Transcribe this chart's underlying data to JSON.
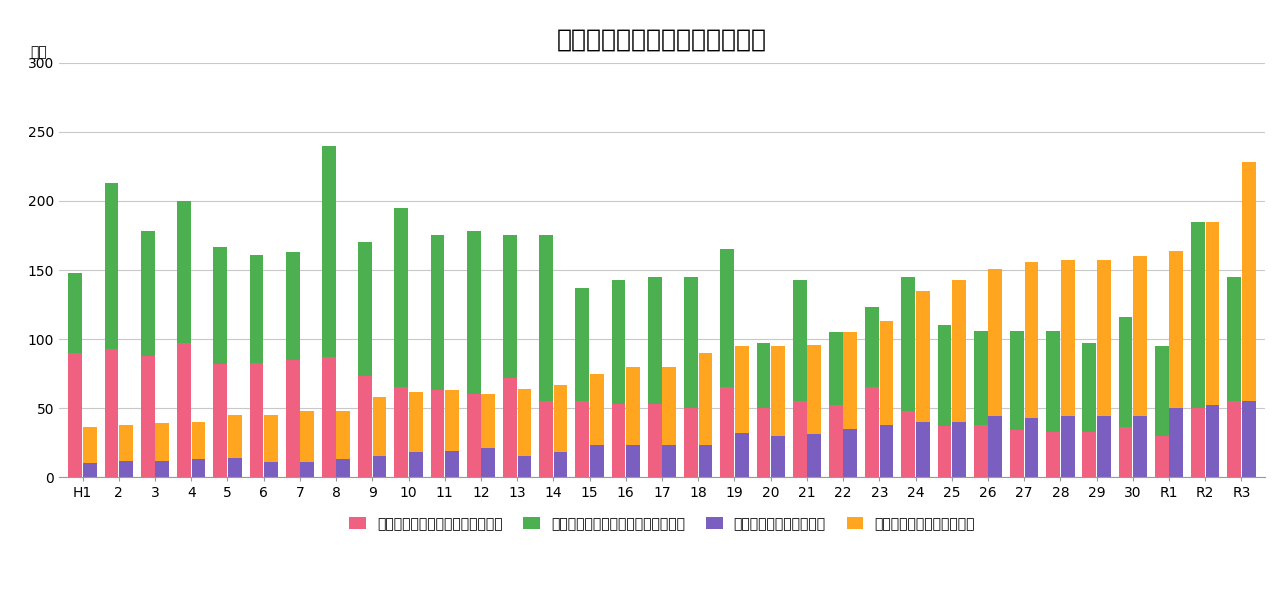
{
  "title": "扶助費と普通建設事業費の推移",
  "ylabel": "億円",
  "ylim": [
    0,
    300
  ],
  "yticks": [
    0,
    50,
    100,
    150,
    200,
    250,
    300
  ],
  "categories": [
    "H1",
    "2",
    "3",
    "4",
    "5",
    "6",
    "7",
    "8",
    "9",
    "10",
    "11",
    "12",
    "13",
    "14",
    "15",
    "16",
    "17",
    "18",
    "19",
    "20",
    "21",
    "22",
    "23",
    "24",
    "25",
    "26",
    "27",
    "28",
    "29",
    "30",
    "R1",
    "R2",
    "R3"
  ],
  "series": {
    "pink": {
      "label": "普通建設事業費のうちの一般財源",
      "color": "#F06080",
      "values": [
        90,
        93,
        88,
        97,
        82,
        83,
        85,
        87,
        73,
        65,
        63,
        60,
        72,
        55,
        55,
        53,
        53,
        50,
        65,
        50,
        55,
        52,
        65,
        48,
        37,
        38,
        34,
        33,
        33,
        36,
        30,
        50,
        55
      ]
    },
    "green": {
      "label": "普通建設事業費（一般財源を除く）",
      "color": "#4CAF50",
      "values": [
        58,
        120,
        90,
        103,
        85,
        78,
        78,
        153,
        97,
        130,
        112,
        118,
        103,
        120,
        82,
        90,
        92,
        95,
        100,
        47,
        88,
        53,
        58,
        97,
        73,
        68,
        72,
        73,
        64,
        80,
        65,
        135,
        90
      ]
    },
    "purple": {
      "label": "扶助費のうちの一般財源",
      "color": "#7B5FC0",
      "values": [
        10,
        12,
        12,
        13,
        14,
        11,
        11,
        13,
        15,
        18,
        19,
        21,
        15,
        18,
        23,
        23,
        23,
        23,
        32,
        30,
        31,
        35,
        38,
        40,
        40,
        44,
        43,
        44,
        44,
        44,
        50,
        52,
        55
      ]
    },
    "orange": {
      "label": "扶助費（一般財源を除く）",
      "color": "#FFA520",
      "values": [
        26,
        26,
        27,
        27,
        31,
        34,
        37,
        35,
        43,
        44,
        44,
        39,
        49,
        49,
        52,
        57,
        57,
        67,
        63,
        65,
        65,
        70,
        75,
        95,
        103,
        107,
        113,
        113,
        113,
        116,
        114,
        133,
        173
      ]
    }
  },
  "background_color": "#FFFFFF",
  "grid_color": "#C8C8C8",
  "title_fontsize": 18,
  "label_fontsize": 10,
  "tick_fontsize": 10,
  "ylabel_fontsize": 10
}
